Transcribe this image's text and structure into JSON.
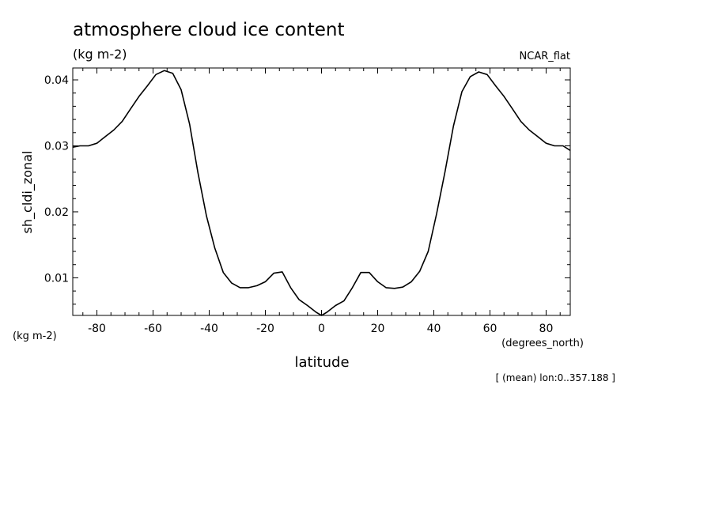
{
  "chart_data": {
    "type": "line",
    "title": "atmosphere cloud ice content",
    "units": "(kg m-2)",
    "model_label": "NCAR_flat",
    "ylabel": "sh_cldi_zonal",
    "y_units_label": "(kg m-2)",
    "xlabel": "latitude",
    "x_units_label": "(degrees_north)",
    "footnote": "[ (mean) lon:0..357.188 ]",
    "xlim": [
      -88.6,
      88.6
    ],
    "ylim": [
      0.0043,
      0.0418
    ],
    "xticks": [
      -80,
      -60,
      -40,
      -20,
      0,
      20,
      40,
      60,
      80
    ],
    "xtick_labels": [
      "-80",
      "-60",
      "-40",
      "-20",
      "0",
      "20",
      "40",
      "60",
      "80"
    ],
    "yticks": [
      0.01,
      0.02,
      0.03,
      0.04
    ],
    "ytick_labels": [
      "0.01",
      "0.02",
      "0.03",
      "0.04"
    ],
    "grid": false,
    "series": [
      {
        "x": [
          -88.6,
          -86,
          -83,
          -80,
          -77,
          -74,
          -71,
          -68,
          -65,
          -62,
          -59,
          -56,
          -53,
          -50,
          -47,
          -44,
          -41,
          -38,
          -35,
          -32,
          -29,
          -26,
          -23,
          -20,
          -17,
          -14,
          -11,
          -8,
          -5,
          -2,
          0,
          2,
          5,
          8,
          11,
          14,
          17,
          20,
          23,
          26,
          29,
          32,
          35,
          38,
          41,
          44,
          47,
          50,
          53,
          56,
          59,
          62,
          65,
          68,
          71,
          74,
          77,
          80,
          83,
          86,
          88.6
        ],
        "y": [
          0.0298,
          0.03,
          0.03,
          0.0304,
          0.0314,
          0.0324,
          0.0337,
          0.0356,
          0.0375,
          0.0391,
          0.0408,
          0.0414,
          0.041,
          0.0385,
          0.0333,
          0.0259,
          0.0194,
          0.0145,
          0.0108,
          0.0092,
          0.0085,
          0.0085,
          0.0088,
          0.0094,
          0.0107,
          0.0109,
          0.0085,
          0.0067,
          0.0058,
          0.0048,
          0.0043,
          0.0048,
          0.0058,
          0.0065,
          0.0085,
          0.0108,
          0.0108,
          0.0094,
          0.0085,
          0.0084,
          0.0086,
          0.0094,
          0.011,
          0.014,
          0.0197,
          0.0261,
          0.033,
          0.0382,
          0.0405,
          0.0412,
          0.0408,
          0.0391,
          0.0375,
          0.0356,
          0.0337,
          0.0324,
          0.0314,
          0.0304,
          0.03,
          0.03,
          0.0293
        ]
      }
    ]
  }
}
